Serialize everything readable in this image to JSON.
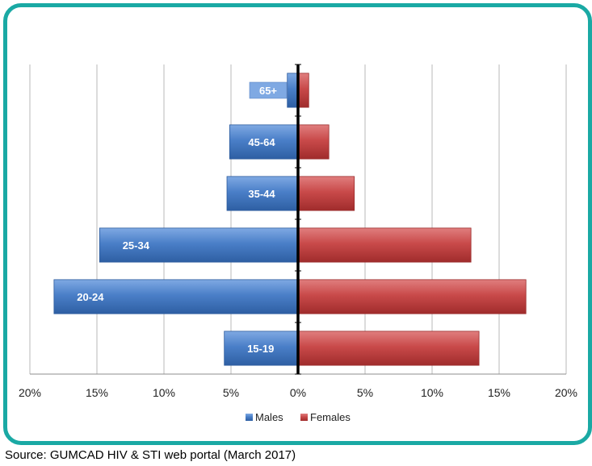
{
  "chart_data": {
    "type": "bar",
    "orientation": "horizontal",
    "layout": "population-pyramid",
    "categories": [
      "65+",
      "45-64",
      "35-44",
      "25-34",
      "20-24",
      "15-19"
    ],
    "series": [
      {
        "name": "Males",
        "values": [
          0.8,
          5.1,
          5.3,
          14.8,
          18.2,
          5.5
        ]
      },
      {
        "name": "Females",
        "values": [
          0.8,
          2.3,
          4.2,
          12.9,
          17.0,
          13.5
        ]
      }
    ],
    "xlim": [
      -20,
      20
    ],
    "xticks": [
      "20%",
      "15%",
      "10%",
      "5%",
      "0%",
      "5%",
      "10%",
      "15%",
      "20%"
    ],
    "grid": true,
    "legend_position": "bottom",
    "colors": {
      "Males": "#4a7fc8",
      "Females": "#c94a4a",
      "frame": "#1aa9a4",
      "gridline": "#b9b9b9",
      "axis": "#000000"
    }
  },
  "source": "Source: GUMCAD HIV & STI web portal (March 2017)"
}
